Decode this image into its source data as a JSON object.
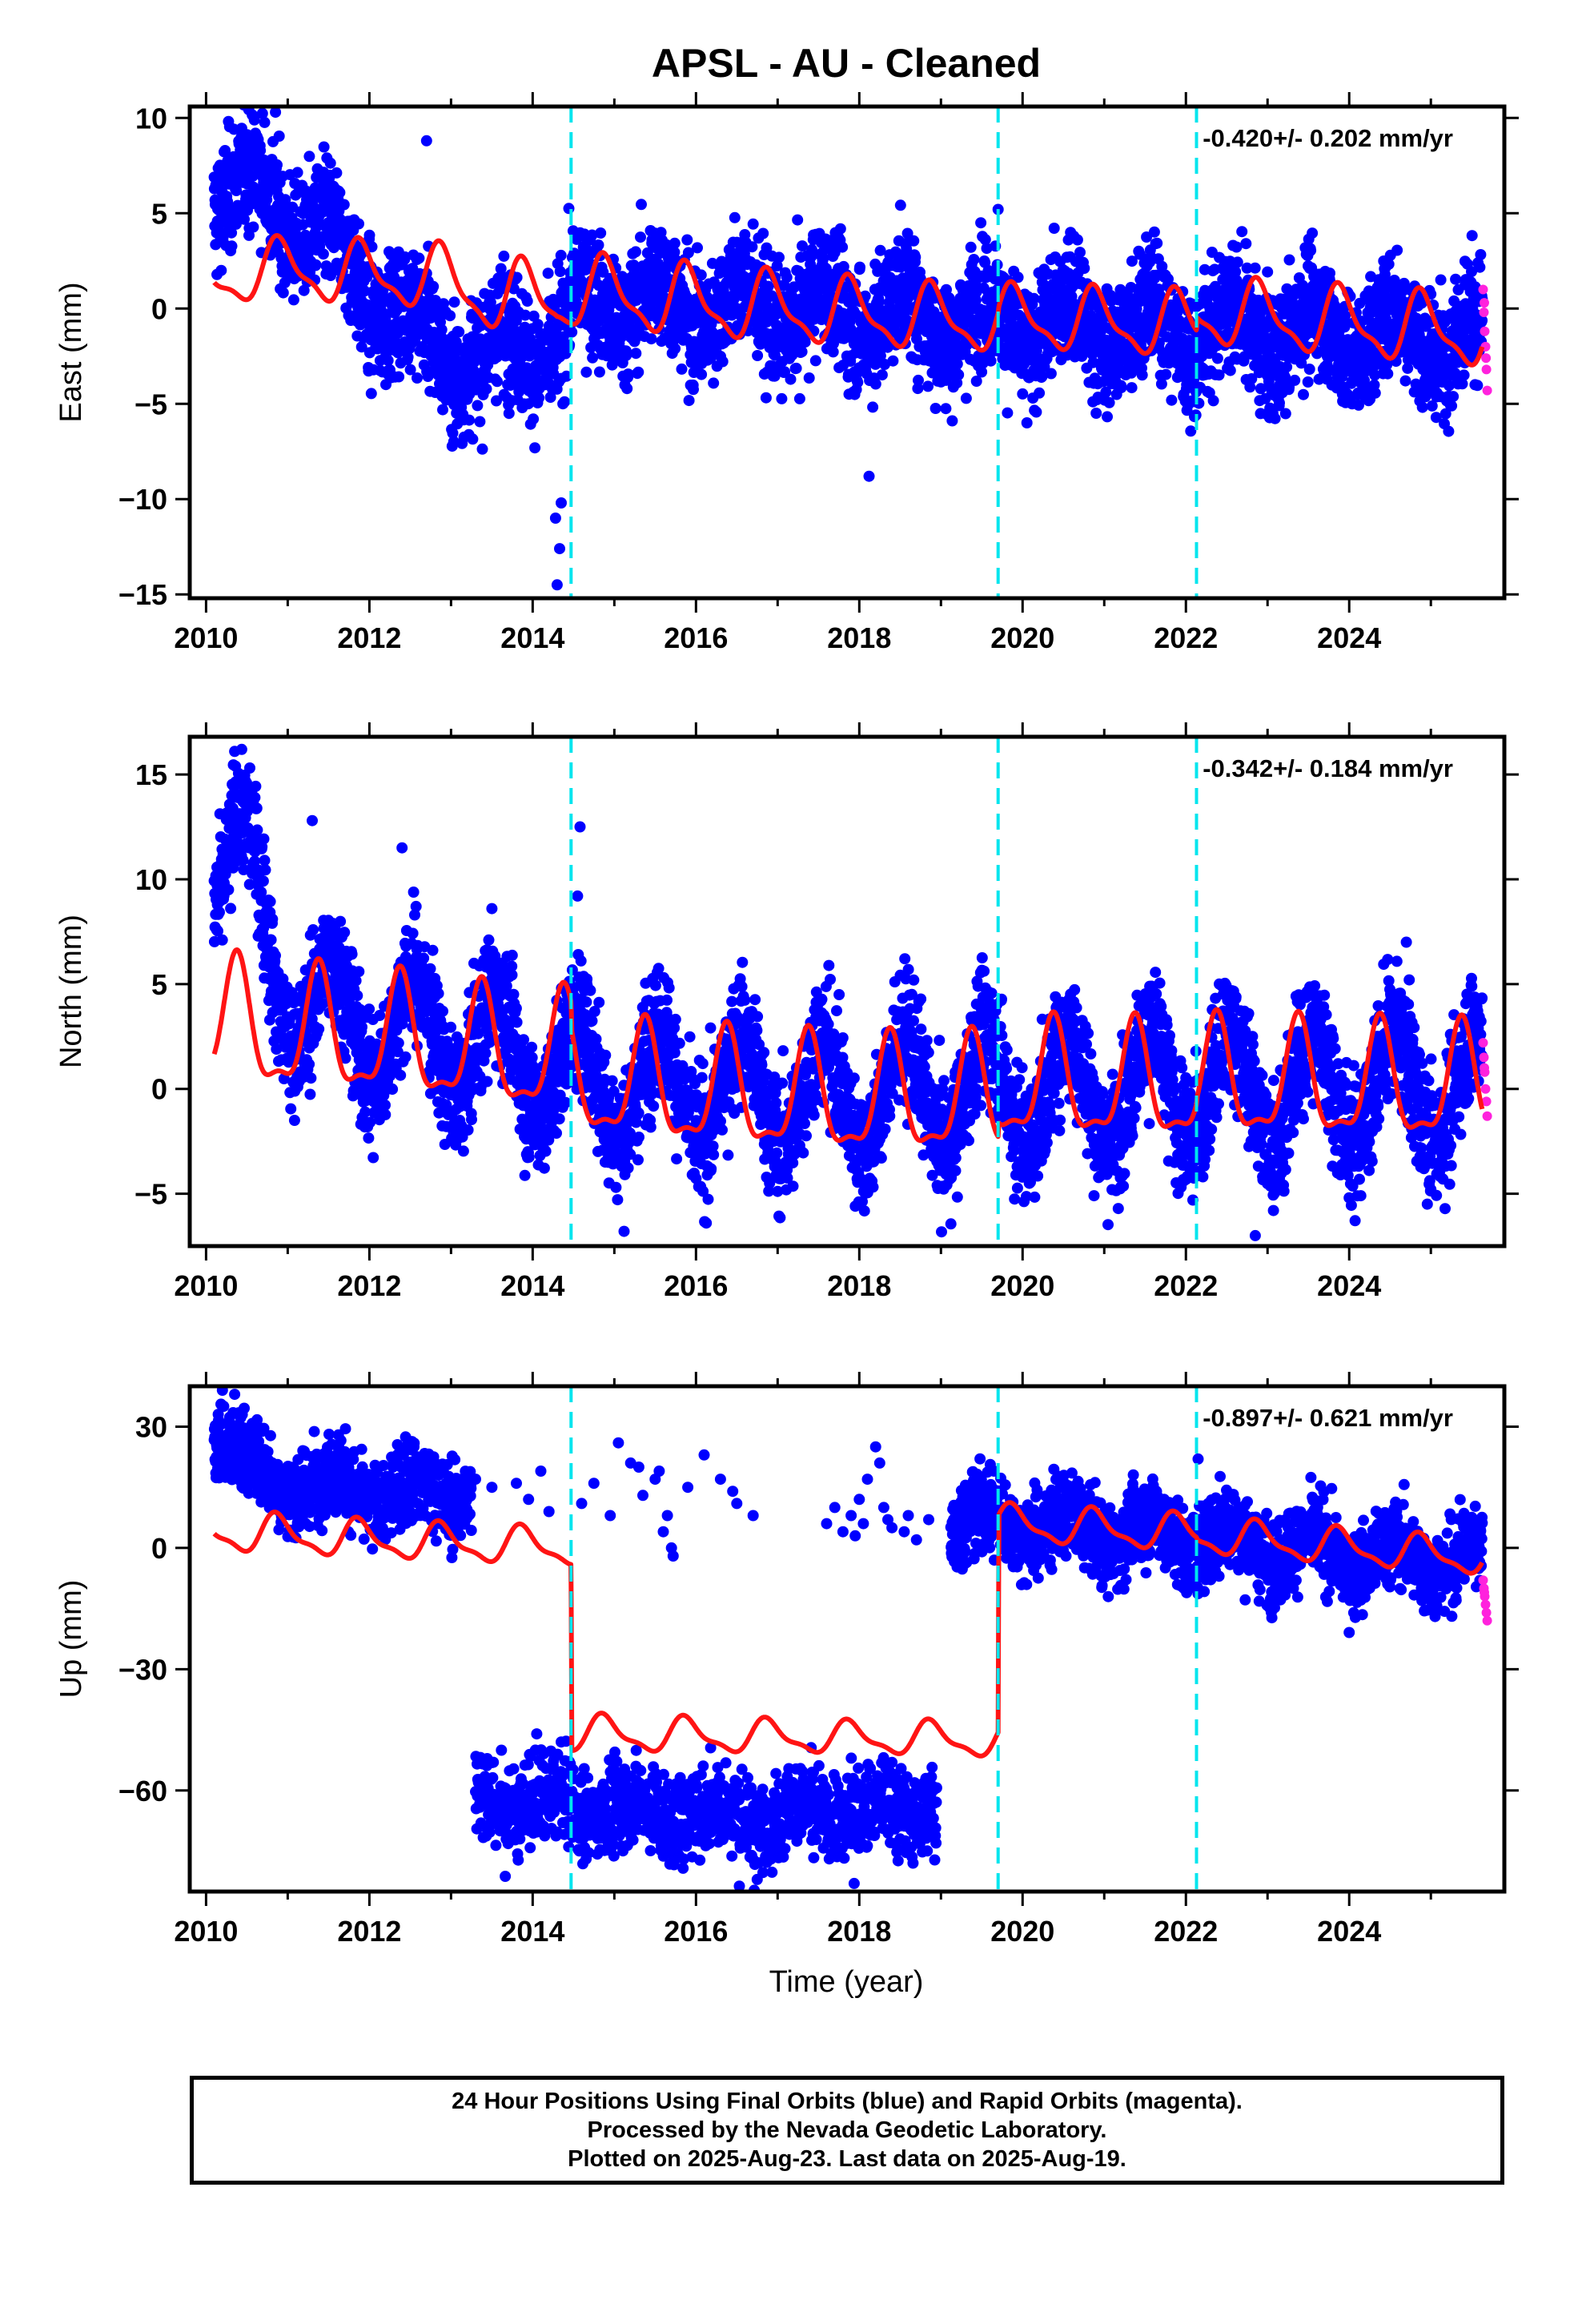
{
  "title": "APSL  - AU - Cleaned",
  "xlabel": "Time (year)",
  "colors": {
    "final_orbits": "#0000ff",
    "rapid_orbits": "#ff22dd",
    "model": "#ff1414",
    "offsets": "#00e5ee",
    "frame": "#000000"
  },
  "footer": {
    "line1": "24 Hour Positions Using Final Orbits (blue) and Rapid Orbits (magenta).",
    "line2": "Processed by the Nevada Geodetic Laboratory.",
    "line3": "Plotted on 2025-Aug-23. Last data on 2025-Aug-19."
  },
  "chart_data": [
    {
      "type": "scatter",
      "ylabel": "East (mm)",
      "rate_label": "-0.420+/- 0.202 mm/yr",
      "xlim": [
        2009.8,
        2025.9
      ],
      "ylim": [
        -15.2,
        10.6
      ],
      "xticks": [
        2010,
        2012,
        2014,
        2016,
        2018,
        2020,
        2022,
        2024
      ],
      "yticks": [
        -15,
        -10,
        -5,
        0,
        5,
        10
      ],
      "yticklabels": [
        "−15",
        "−10",
        "−5",
        "0",
        "5",
        "10"
      ],
      "offset_epochs": [
        2014.47,
        2019.7,
        2022.13
      ],
      "data_start": 2010.1,
      "data_end": 2025.63,
      "gaps": [],
      "trend": [
        [
          2010.1,
          6.0
        ],
        [
          2010.6,
          6.4
        ],
        [
          2011.0,
          5.0
        ],
        [
          2011.5,
          3.4
        ],
        [
          2012.0,
          1.0
        ],
        [
          2012.5,
          -1.0
        ],
        [
          2013.0,
          -2.0
        ],
        [
          2013.4,
          -3.0
        ],
        [
          2013.8,
          -1.5
        ],
        [
          2014.3,
          -2.0
        ],
        [
          2014.6,
          0.5
        ],
        [
          2016.0,
          0.2
        ],
        [
          2018.0,
          -0.2
        ],
        [
          2019.7,
          -0.8
        ],
        [
          2022.0,
          -1.0
        ],
        [
          2025.63,
          -1.5
        ]
      ],
      "spread": 1.6,
      "season_amp": 1.3,
      "outliers": [
        [
          2014.3,
          -14.5
        ],
        [
          2014.33,
          -12.6
        ],
        [
          2014.28,
          -11.0
        ],
        [
          2014.35,
          -10.2
        ],
        [
          2018.12,
          -8.8
        ],
        [
          2010.85,
          10.3
        ],
        [
          2012.7,
          8.8
        ],
        [
          2019.7,
          5.2
        ]
      ],
      "rapid": [
        [
          2025.64,
          1.0
        ],
        [
          2025.65,
          -0.2
        ],
        [
          2025.66,
          -1.2
        ],
        [
          2025.67,
          -2.0
        ],
        [
          2025.68,
          -3.2
        ],
        [
          2025.69,
          -4.3
        ],
        [
          2025.655,
          0.3
        ],
        [
          2025.675,
          -2.6
        ]
      ],
      "model": {
        "base": [
          [
            2010.1,
            1.4
          ],
          [
            2011.0,
            2.2
          ],
          [
            2011.8,
            1.7
          ],
          [
            2012.6,
            1.8
          ],
          [
            2013.3,
            0.8
          ],
          [
            2014.3,
            0.4
          ],
          [
            2014.47,
            0.9
          ],
          [
            2016.0,
            0.3
          ],
          [
            2018.0,
            -0.3
          ],
          [
            2019.7,
            -0.7
          ],
          [
            2019.71,
            -0.5
          ],
          [
            2022.13,
            -0.9
          ],
          [
            2022.14,
            -0.2
          ],
          [
            2025.63,
            -1.3
          ]
        ],
        "amp": [
          [
            2010.1,
            1.2
          ],
          [
            2012.0,
            1.6
          ],
          [
            2014.0,
            1.7
          ],
          [
            2016.0,
            1.7
          ],
          [
            2020.0,
            1.5
          ],
          [
            2025.63,
            1.7
          ]
        ],
        "phase": 2.2
      }
    },
    {
      "type": "scatter",
      "ylabel": "North (mm)",
      "rate_label": "-0.342+/- 0.184 mm/yr",
      "xlim": [
        2009.8,
        2025.9
      ],
      "ylim": [
        -7.5,
        16.8
      ],
      "xticks": [
        2010,
        2012,
        2014,
        2016,
        2018,
        2020,
        2022,
        2024
      ],
      "yticks": [
        -5,
        0,
        5,
        10,
        15
      ],
      "yticklabels": [
        "−5",
        "0",
        "5",
        "10",
        "15"
      ],
      "offset_epochs": [
        2014.47,
        2019.7,
        2022.13
      ],
      "data_start": 2010.1,
      "data_end": 2025.63,
      "gaps": [],
      "trend": [
        [
          2010.1,
          11.0
        ],
        [
          2010.4,
          12.0
        ],
        [
          2010.8,
          6.0
        ],
        [
          2011.2,
          4.0
        ],
        [
          2012.0,
          3.0
        ],
        [
          2013.0,
          2.5
        ],
        [
          2014.0,
          1.5
        ],
        [
          2014.6,
          0.5
        ],
        [
          2016.0,
          0.0
        ],
        [
          2018.0,
          -0.3
        ],
        [
          2020.0,
          0.0
        ],
        [
          2022.0,
          0.0
        ],
        [
          2025.63,
          0.2
        ]
      ],
      "spread": 1.5,
      "season_amp": 2.6,
      "outliers": [
        [
          2010.35,
          16.1
        ],
        [
          2014.58,
          12.5
        ],
        [
          2014.55,
          9.2
        ],
        [
          2022.85,
          -7.0
        ],
        [
          2011.3,
          12.8
        ],
        [
          2012.4,
          11.5
        ],
        [
          2013.5,
          8.6
        ],
        [
          2024.7,
          7.0
        ]
      ],
      "rapid": [
        [
          2025.64,
          2.2
        ],
        [
          2025.65,
          1.5
        ],
        [
          2025.66,
          0.8
        ],
        [
          2025.67,
          0.0
        ],
        [
          2025.68,
          -0.6
        ],
        [
          2025.69,
          -1.3
        ],
        [
          2025.655,
          1.0
        ]
      ],
      "model": {
        "base": [
          [
            2010.1,
            3.0
          ],
          [
            2011.0,
            2.6
          ],
          [
            2012.0,
            2.4
          ],
          [
            2013.0,
            2.0
          ],
          [
            2014.0,
            1.5
          ],
          [
            2014.47,
            1.6
          ],
          [
            2014.48,
            0.4
          ],
          [
            2016.0,
            -0.2
          ],
          [
            2018.0,
            -0.6
          ],
          [
            2019.7,
            -0.5
          ],
          [
            2019.71,
            0.2
          ],
          [
            2022.13,
            0.1
          ],
          [
            2022.14,
            0.3
          ],
          [
            2025.63,
            0.0
          ]
        ],
        "amp": [
          [
            2010.1,
            2.8
          ],
          [
            2014.0,
            2.6
          ],
          [
            2018.0,
            2.6
          ],
          [
            2025.63,
            2.6
          ]
        ],
        "phase": 5.5
      }
    },
    {
      "type": "scatter",
      "ylabel": "Up (mm)",
      "rate_label": "-0.897+/- 0.621 mm/yr",
      "xlim": [
        2009.8,
        2025.9
      ],
      "ylim": [
        -85,
        40
      ],
      "xticks": [
        2010,
        2012,
        2014,
        2016,
        2018,
        2020,
        2022,
        2024
      ],
      "yticks": [
        -60,
        -30,
        0,
        30
      ],
      "yticklabels": [
        "−60",
        "−30",
        "0",
        "30"
      ],
      "offset_epochs": [
        2014.47,
        2019.7,
        2022.13
      ],
      "data_start": 2010.1,
      "data_end": 2025.63,
      "gaps": [
        [
          2013.25,
          2019.12
        ]
      ],
      "trend": [
        [
          2010.1,
          30.0
        ],
        [
          2010.5,
          20.0
        ],
        [
          2011.0,
          16.0
        ],
        [
          2012.0,
          14.0
        ],
        [
          2013.25,
          14.0
        ],
        [
          2019.12,
          8.0
        ],
        [
          2019.6,
          6.0
        ],
        [
          2020.0,
          6.0
        ],
        [
          2022.0,
          3.0
        ],
        [
          2024.0,
          -2.0
        ],
        [
          2025.63,
          -3.0
        ]
      ],
      "spread": 5.0,
      "season_amp": 4.0,
      "low_cluster": {
        "start": 2013.3,
        "end": 2018.95,
        "trend": [
          [
            2013.3,
            -62.0
          ],
          [
            2014.5,
            -64.0
          ],
          [
            2016.0,
            -66.0
          ],
          [
            2017.5,
            -66.0
          ],
          [
            2018.95,
            -64.0
          ]
        ],
        "spread": 5.5
      },
      "sparse_high": [
        [
          2013.8,
          16
        ],
        [
          2013.95,
          12
        ],
        [
          2014.1,
          19
        ],
        [
          2014.2,
          9
        ],
        [
          2014.6,
          11
        ],
        [
          2014.75,
          16
        ],
        [
          2014.95,
          8
        ],
        [
          2015.05,
          26
        ],
        [
          2015.2,
          21
        ],
        [
          2015.35,
          13
        ],
        [
          2015.55,
          19
        ],
        [
          2015.6,
          4
        ],
        [
          2015.7,
          0
        ],
        [
          2015.72,
          -2
        ],
        [
          2015.65,
          8
        ],
        [
          2015.9,
          15
        ],
        [
          2016.1,
          23
        ],
        [
          2016.3,
          17
        ],
        [
          2016.45,
          14
        ],
        [
          2016.5,
          11
        ],
        [
          2016.7,
          8
        ],
        [
          2017.6,
          6
        ],
        [
          2017.7,
          10
        ],
        [
          2017.8,
          4
        ],
        [
          2017.9,
          8
        ],
        [
          2018.0,
          12
        ],
        [
          2018.05,
          6
        ],
        [
          2018.1,
          17
        ],
        [
          2018.2,
          25
        ],
        [
          2018.3,
          10
        ],
        [
          2018.4,
          5
        ],
        [
          2018.55,
          4
        ],
        [
          2018.6,
          8
        ],
        [
          2018.7,
          2
        ],
        [
          2018.85,
          7
        ],
        [
          2013.3,
          17
        ],
        [
          2013.5,
          15
        ],
        [
          2018.25,
          21
        ],
        [
          2017.95,
          3
        ],
        [
          2018.35,
          7
        ],
        [
          2015.5,
          17
        ],
        [
          2015.3,
          20
        ]
      ],
      "outliers": [
        [
          2010.2,
          39
        ],
        [
          2010.35,
          38
        ],
        [
          2022.15,
          22
        ],
        [
          2014.35,
          -48
        ],
        [
          2016.75,
          -82
        ],
        [
          2014.05,
          -46
        ]
      ],
      "rapid": [
        [
          2025.64,
          -8
        ],
        [
          2025.65,
          -10
        ],
        [
          2025.66,
          -12
        ],
        [
          2025.67,
          -14
        ],
        [
          2025.68,
          -16
        ],
        [
          2025.69,
          -18
        ],
        [
          2025.655,
          -11
        ]
      ],
      "model": {
        "base": [
          [
            2010.1,
            4.0
          ],
          [
            2012.0,
            2.0
          ],
          [
            2014.47,
            0.0
          ],
          [
            2014.48,
            -46.0
          ],
          [
            2016.0,
            -46.5
          ],
          [
            2019.7,
            -47.5
          ],
          [
            2019.71,
            6.0
          ],
          [
            2022.13,
            3.5
          ],
          [
            2022.14,
            3.0
          ],
          [
            2025.63,
            -2.5
          ]
        ],
        "amp": [
          [
            2010.1,
            4.5
          ],
          [
            2012.0,
            4.2
          ],
          [
            2014.0,
            4.2
          ],
          [
            2018.0,
            3.6
          ],
          [
            2020.0,
            4.2
          ],
          [
            2025.63,
            4.0
          ]
        ],
        "phase": 2.3
      }
    }
  ]
}
